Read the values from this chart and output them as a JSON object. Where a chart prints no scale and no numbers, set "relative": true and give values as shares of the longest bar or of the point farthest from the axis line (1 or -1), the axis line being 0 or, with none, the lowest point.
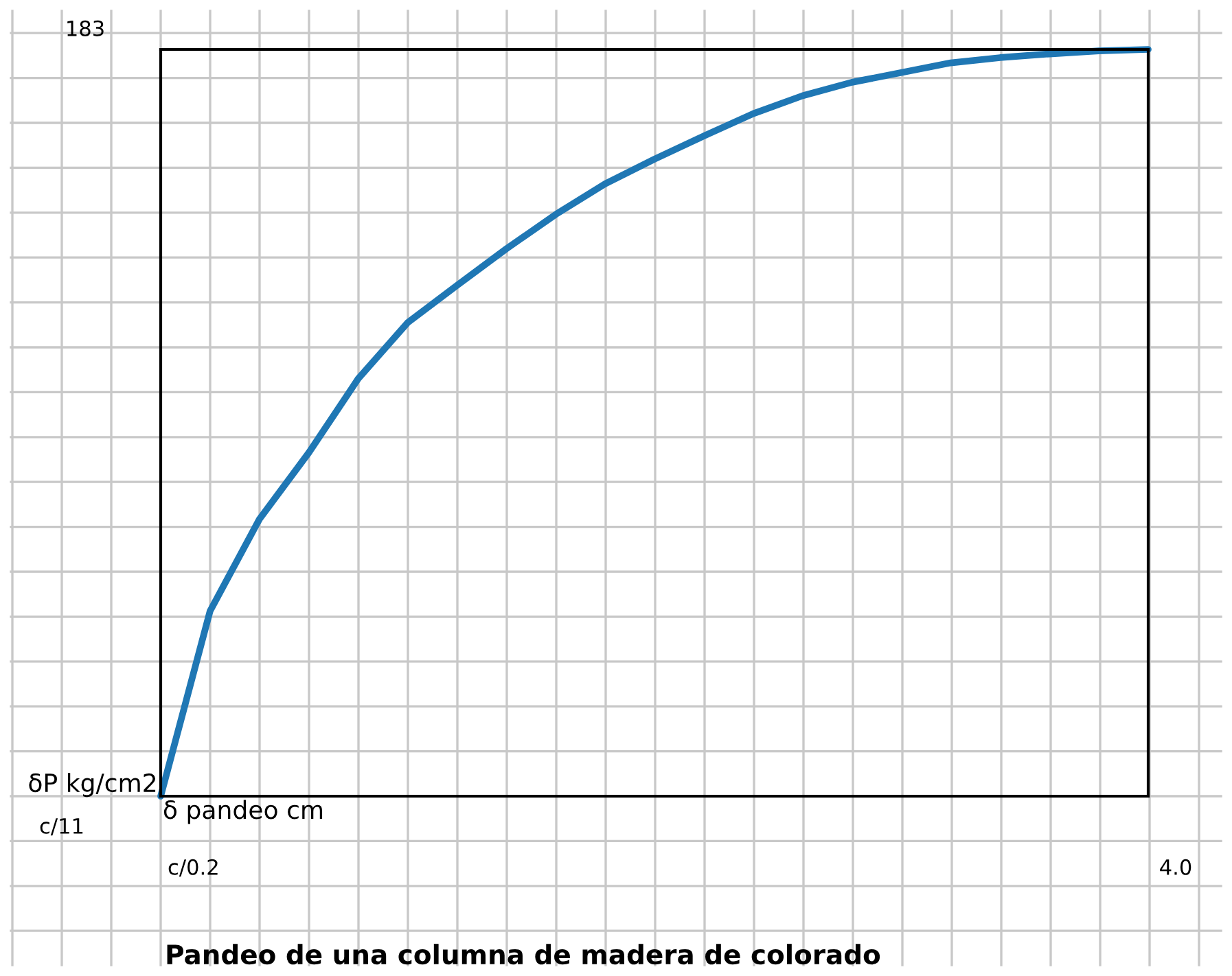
{
  "chart_data": {
    "type": "line",
    "title": "Pandeo de una columna de madera de colorado",
    "xlabel": "δ pandeo cm",
    "ylabel": "δP kg/cm2",
    "annotations": [
      "c/11",
      "c/0.2",
      "183",
      "4.0"
    ],
    "relative": true,
    "categories": [
      null,
      null,
      null,
      null,
      null,
      null,
      null,
      null,
      null,
      null,
      null,
      null,
      null,
      null,
      null,
      null,
      null,
      null,
      null,
      null,
      null
    ],
    "series": [
      {
        "color": "#1f77b4",
        "values": [
          0,
          0.248,
          0.371,
          0.46,
          0.559,
          0.634,
          0.684,
          0.733,
          0.779,
          0.82,
          0.853,
          0.884,
          0.914,
          0.938,
          0.956,
          0.969,
          0.982,
          0.989,
          0.994,
          0.998,
          1
        ]
      }
    ],
    "grid": true,
    "marker": "none",
    "line_style": "solid"
  }
}
